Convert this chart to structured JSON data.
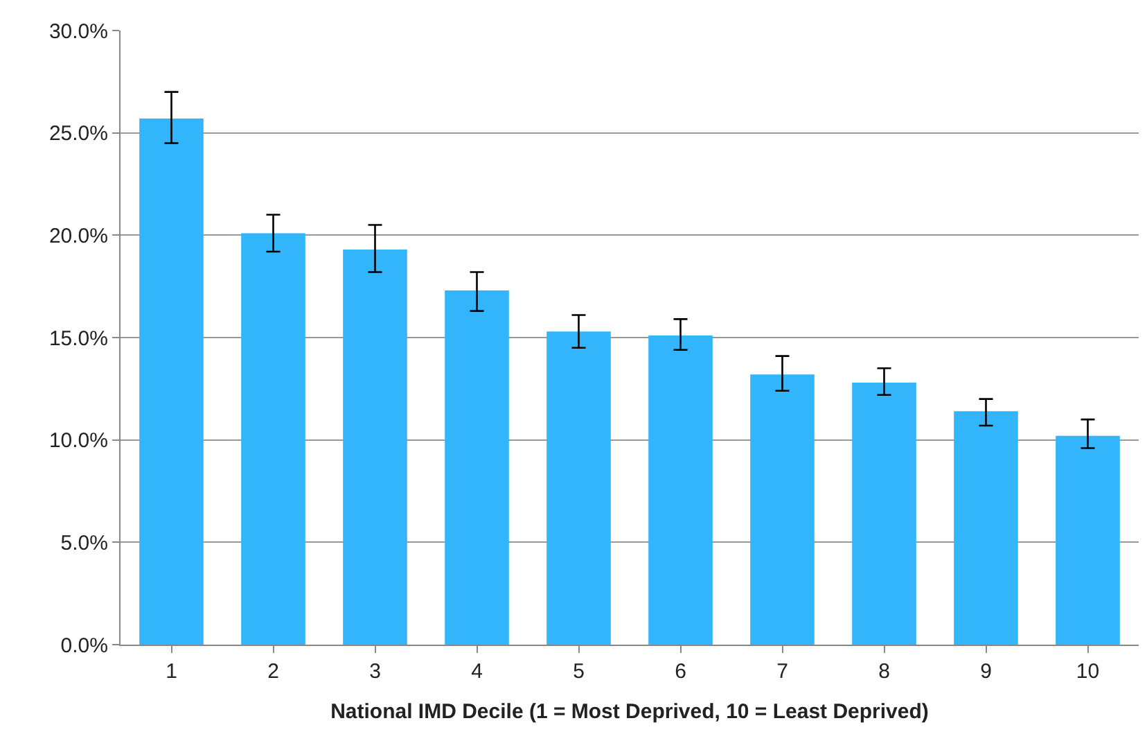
{
  "chart_data": {
    "type": "bar",
    "xlabel": "National IMD Decile (1 = Most Deprived, 10 = Least Deprived)",
    "categories": [
      "1",
      "2",
      "3",
      "4",
      "5",
      "6",
      "7",
      "8",
      "9",
      "10"
    ],
    "values": [
      25.7,
      20.1,
      19.3,
      17.3,
      15.3,
      15.1,
      13.2,
      12.8,
      11.4,
      10.2
    ],
    "errors": [
      [
        24.5,
        27.0
      ],
      [
        19.2,
        21.0
      ],
      [
        18.2,
        20.5
      ],
      [
        16.3,
        18.2
      ],
      [
        14.5,
        16.1
      ],
      [
        14.4,
        15.9
      ],
      [
        12.4,
        14.1
      ],
      [
        12.2,
        13.5
      ],
      [
        10.7,
        12.0
      ],
      [
        9.6,
        11.0
      ]
    ],
    "color": "#33b5fc",
    "ylim": [
      0,
      30
    ],
    "yticks": [
      {
        "value": 0,
        "label": "0.0%"
      },
      {
        "value": 5,
        "label": "5.0%"
      },
      {
        "value": 10,
        "label": "10.0%"
      },
      {
        "value": 15,
        "label": "15.0%"
      },
      {
        "value": 20,
        "label": "20.0%"
      },
      {
        "value": 25,
        "label": "25.0%"
      },
      {
        "value": 30,
        "label": "30.0%"
      }
    ],
    "grid": "y"
  }
}
